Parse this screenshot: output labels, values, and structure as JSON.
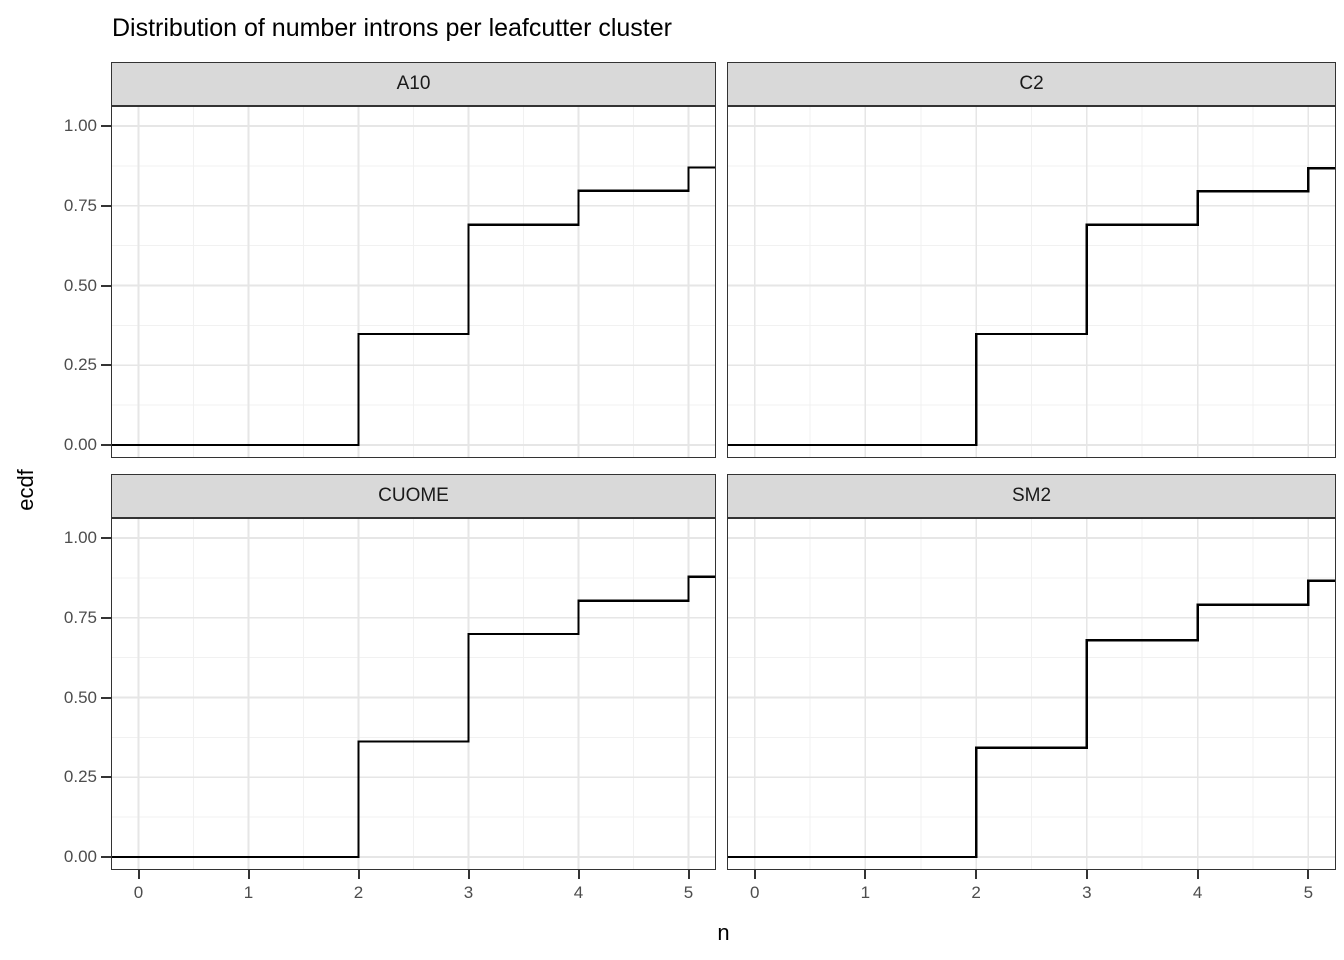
{
  "title": "Distribution of number introns per leafcutter cluster",
  "x_axis_label": "n",
  "y_axis_label": "ecdf",
  "colors": {
    "background": "#ffffff",
    "panel_background": "#ffffff",
    "panel_border": "#333333",
    "strip_fill": "#d9d9d9",
    "strip_border": "#333333",
    "strip_text": "#1a1a1a",
    "grid_major": "#e6e6e6",
    "grid_minor": "#f1f1f1",
    "axis_text": "#4d4d4d",
    "tick_mark": "#333333",
    "ecdf_line": "#000000",
    "title_text": "#000000"
  },
  "chart_data": {
    "type": "line",
    "variant": "step-ecdf",
    "title": "Distribution of number introns per leafcutter cluster",
    "xlabel": "n",
    "ylabel": "ecdf",
    "xlim": [
      -0.25,
      5.25
    ],
    "ylim": [
      -0.04,
      1.06
    ],
    "x_ticks": [
      0,
      1,
      2,
      3,
      4,
      5
    ],
    "y_ticks": [
      1.0,
      0.75,
      0.5,
      0.25,
      0.0
    ],
    "x_tick_labels": [
      "0",
      "1",
      "2",
      "3",
      "4",
      "5"
    ],
    "y_tick_labels": [
      "1.00",
      "0.75",
      "0.50",
      "0.25",
      "0.00"
    ],
    "x_minor_gridlines": [
      0.5,
      1.5,
      2.5,
      3.5,
      4.5
    ],
    "y_minor_gridlines": [
      0.125,
      0.375,
      0.625,
      0.875
    ],
    "grid": true,
    "legend_position": "none",
    "facet_layout": [
      [
        "A10",
        "C2"
      ],
      [
        "CUOME",
        "SM2"
      ]
    ],
    "facets": [
      {
        "label": "A10",
        "baseline_y": 0,
        "ecdf_steps": [
          {
            "x": 2,
            "y": 0.348
          },
          {
            "x": 3,
            "y": 0.69
          },
          {
            "x": 4,
            "y": 0.797
          },
          {
            "x": 5,
            "y": 0.87
          }
        ]
      },
      {
        "label": "C2",
        "baseline_y": 0,
        "ecdf_steps": [
          {
            "x": 2,
            "y": 0.348
          },
          {
            "x": 3,
            "y": 0.69
          },
          {
            "x": 4,
            "y": 0.795
          },
          {
            "x": 5,
            "y": 0.868
          }
        ]
      },
      {
        "label": "CUOME",
        "baseline_y": 0,
        "ecdf_steps": [
          {
            "x": 2,
            "y": 0.362
          },
          {
            "x": 3,
            "y": 0.699
          },
          {
            "x": 4,
            "y": 0.803
          },
          {
            "x": 5,
            "y": 0.879
          }
        ]
      },
      {
        "label": "SM2",
        "baseline_y": 0,
        "ecdf_steps": [
          {
            "x": 2,
            "y": 0.343
          },
          {
            "x": 3,
            "y": 0.68
          },
          {
            "x": 4,
            "y": 0.791
          },
          {
            "x": 5,
            "y": 0.866
          }
        ]
      }
    ]
  }
}
